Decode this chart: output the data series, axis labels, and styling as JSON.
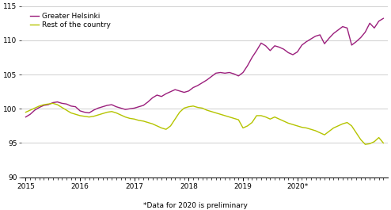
{
  "title": "",
  "footnote": "*Data for 2020 is preliminary",
  "legend": [
    "Greater Helsinki",
    "Rest of the country"
  ],
  "line_colors": [
    "#9b1f7c",
    "#b5c400"
  ],
  "ylim": [
    90,
    115
  ],
  "yticks": [
    90,
    95,
    100,
    105,
    110,
    115
  ],
  "xtick_labels": [
    "2015",
    "2016",
    "2017",
    "2018",
    "2019",
    "2020*"
  ],
  "background_color": "#ffffff",
  "grid_color": "#c8c8c8",
  "greater_helsinki": [
    98.8,
    99.2,
    99.8,
    100.2,
    100.5,
    100.6,
    100.9,
    101.0,
    100.8,
    100.7,
    100.4,
    100.3,
    99.7,
    99.5,
    99.4,
    99.8,
    100.1,
    100.3,
    100.5,
    100.6,
    100.3,
    100.1,
    99.9,
    100.0,
    100.1,
    100.3,
    100.5,
    101.0,
    101.6,
    102.0,
    101.8,
    102.2,
    102.5,
    102.8,
    102.6,
    102.4,
    102.6,
    103.1,
    103.4,
    103.8,
    104.2,
    104.7,
    105.2,
    105.3,
    105.2,
    105.3,
    105.1,
    104.8,
    105.3,
    106.3,
    107.5,
    108.5,
    109.6,
    109.2,
    108.5,
    109.2,
    109.0,
    108.7,
    108.2,
    107.9,
    108.3,
    109.3,
    109.8,
    110.2,
    110.6,
    110.8,
    109.5,
    110.3,
    111.0,
    111.5,
    112.0,
    111.8,
    109.3,
    109.8,
    110.4,
    111.2,
    112.5,
    111.8,
    112.8,
    113.2
  ],
  "rest_of_country": [
    99.5,
    99.8,
    100.1,
    100.4,
    100.6,
    100.7,
    100.8,
    100.6,
    100.2,
    99.8,
    99.4,
    99.2,
    99.0,
    98.9,
    98.8,
    98.9,
    99.1,
    99.3,
    99.5,
    99.6,
    99.4,
    99.1,
    98.8,
    98.6,
    98.5,
    98.3,
    98.2,
    98.0,
    97.8,
    97.5,
    97.2,
    97.0,
    97.5,
    98.5,
    99.5,
    100.1,
    100.3,
    100.4,
    100.2,
    100.1,
    99.8,
    99.6,
    99.4,
    99.2,
    99.0,
    98.8,
    98.6,
    98.4,
    97.2,
    97.5,
    98.0,
    99.0,
    99.0,
    98.8,
    98.5,
    98.8,
    98.5,
    98.2,
    97.9,
    97.7,
    97.5,
    97.3,
    97.2,
    97.0,
    96.8,
    96.5,
    96.2,
    96.7,
    97.2,
    97.5,
    97.8,
    98.0,
    97.5,
    96.5,
    95.5,
    94.8,
    94.9,
    95.2,
    95.8,
    95.0
  ]
}
